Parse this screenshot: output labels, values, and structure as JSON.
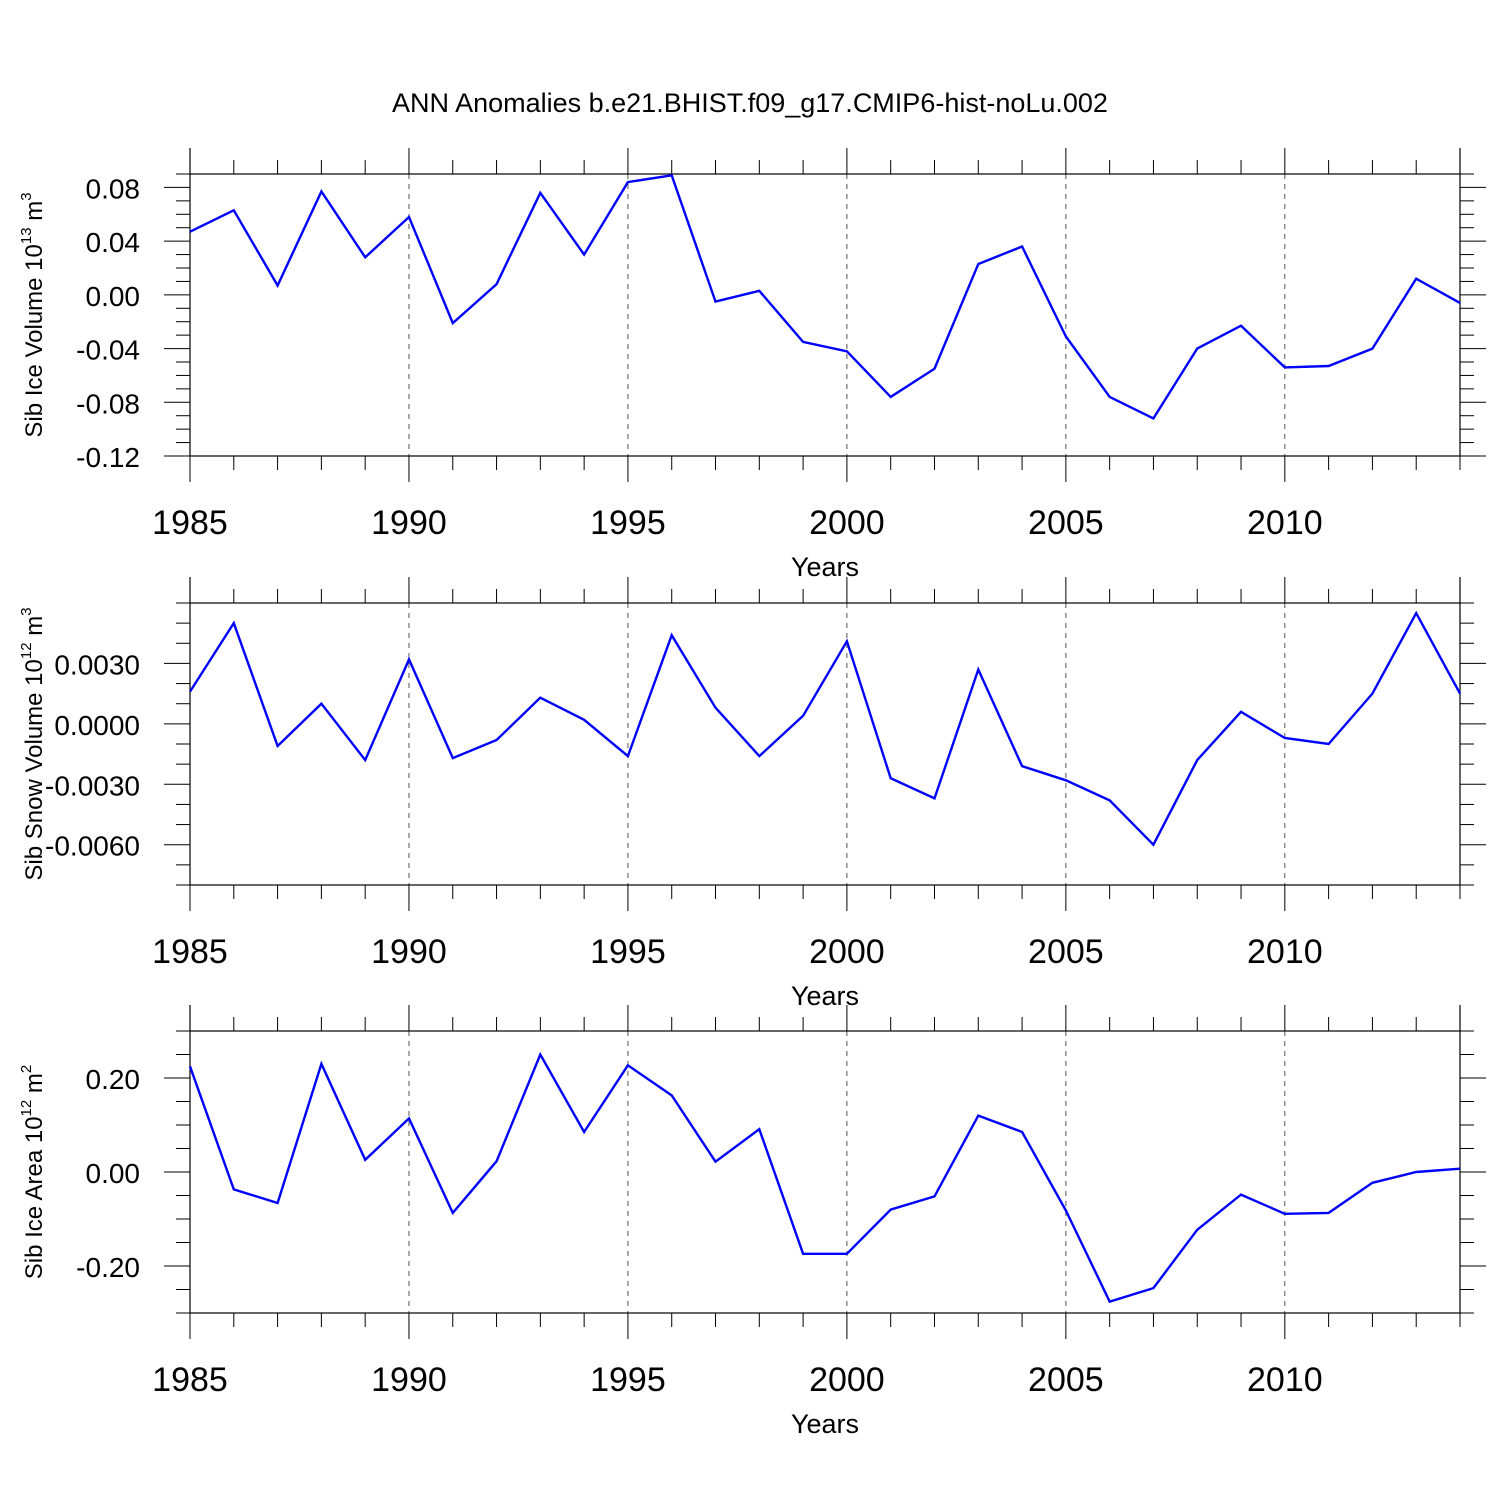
{
  "title": "ANN Anomalies b.e21.BHIST.f09_g17.CMIP6-hist-noLu.002",
  "chart_data": [
    {
      "type": "line",
      "xlabel": "Years",
      "ylabel": {
        "main": "Sib Ice Volume 10",
        "sup": "13",
        "unit": " m",
        "unit_sup": "3"
      },
      "xlim": [
        1985,
        2014
      ],
      "ylim": [
        -0.12,
        0.09
      ],
      "yticks": [
        0.08,
        0.04,
        0.0,
        -0.04,
        -0.08,
        -0.12
      ],
      "ytick_labels": [
        "0.08",
        "0.04",
        "0.00",
        "-0.04",
        "-0.08",
        "-0.12"
      ],
      "yminor_step": 0.01,
      "line_color": "#0000ff",
      "x": [
        1985,
        1986,
        1987,
        1988,
        1989,
        1990,
        1991,
        1992,
        1993,
        1994,
        1995,
        1996,
        1997,
        1998,
        1999,
        2000,
        2001,
        2002,
        2003,
        2004,
        2005,
        2006,
        2007,
        2008,
        2009,
        2010,
        2011,
        2012,
        2013,
        2014
      ],
      "values": [
        0.047,
        0.063,
        0.007,
        0.077,
        0.028,
        0.058,
        -0.021,
        0.008,
        0.076,
        0.03,
        0.084,
        0.089,
        -0.005,
        0.003,
        -0.035,
        -0.042,
        -0.076,
        -0.055,
        0.023,
        0.036,
        -0.031,
        -0.076,
        -0.092,
        -0.04,
        -0.023,
        -0.054,
        -0.053,
        -0.04,
        0.012,
        -0.006
      ]
    },
    {
      "type": "line",
      "xlabel": "Years",
      "ylabel": {
        "main": "Sib Snow Volume 10",
        "sup": "12",
        "unit": " m",
        "unit_sup": "3"
      },
      "xlim": [
        1985,
        2014
      ],
      "ylim": [
        -0.008,
        0.006
      ],
      "yticks": [
        0.003,
        0.0,
        -0.003,
        -0.006
      ],
      "ytick_labels": [
        "0.0030",
        "0.0000",
        "-0.0030",
        "-0.0060"
      ],
      "yminor_step": 0.001,
      "line_color": "#0000ff",
      "x": [
        1985,
        1986,
        1987,
        1988,
        1989,
        1990,
        1991,
        1992,
        1993,
        1994,
        1995,
        1996,
        1997,
        1998,
        1999,
        2000,
        2001,
        2002,
        2003,
        2004,
        2005,
        2006,
        2007,
        2008,
        2009,
        2010,
        2011,
        2012,
        2013,
        2014
      ],
      "values": [
        0.0016,
        0.005,
        -0.0011,
        0.001,
        -0.0018,
        0.0032,
        -0.0017,
        -0.0008,
        0.0013,
        0.0002,
        -0.0016,
        0.0044,
        0.0008,
        -0.0016,
        0.0004,
        0.0041,
        -0.0027,
        -0.0037,
        0.0027,
        -0.0021,
        -0.0028,
        -0.0038,
        -0.006,
        -0.0018,
        0.0006,
        -0.0007,
        -0.001,
        0.0015,
        0.0055,
        0.0015
      ]
    },
    {
      "type": "line",
      "xlabel": "Years",
      "ylabel": {
        "main": "Sib Ice Area 10",
        "sup": "12",
        "unit": " m",
        "unit_sup": "2"
      },
      "xlim": [
        1985,
        2014
      ],
      "ylim": [
        -0.3,
        0.3
      ],
      "yticks": [
        0.2,
        0.0,
        -0.2
      ],
      "ytick_labels": [
        "0.20",
        "0.00",
        "-0.20"
      ],
      "yminor_step": 0.05,
      "line_color": "#0000ff",
      "x": [
        1985,
        1986,
        1987,
        1988,
        1989,
        1990,
        1991,
        1992,
        1993,
        1994,
        1995,
        1996,
        1997,
        1998,
        1999,
        2000,
        2001,
        2002,
        2003,
        2004,
        2005,
        2006,
        2007,
        2008,
        2009,
        2010,
        2011,
        2012,
        2013,
        2014
      ],
      "values": [
        0.225,
        -0.037,
        -0.066,
        0.23,
        0.026,
        0.114,
        -0.087,
        0.023,
        0.25,
        0.085,
        0.227,
        0.163,
        0.022,
        0.091,
        -0.174,
        -0.174,
        -0.08,
        -0.052,
        0.12,
        0.085,
        -0.082,
        -0.276,
        -0.247,
        -0.123,
        -0.048,
        -0.089,
        -0.087,
        -0.023,
        0.0,
        0.007
      ]
    }
  ],
  "xticks": [
    1985,
    1990,
    1995,
    2000,
    2005,
    2010
  ],
  "xtick_labels": [
    "1985",
    "1990",
    "1995",
    "2000",
    "2005",
    "2010"
  ]
}
